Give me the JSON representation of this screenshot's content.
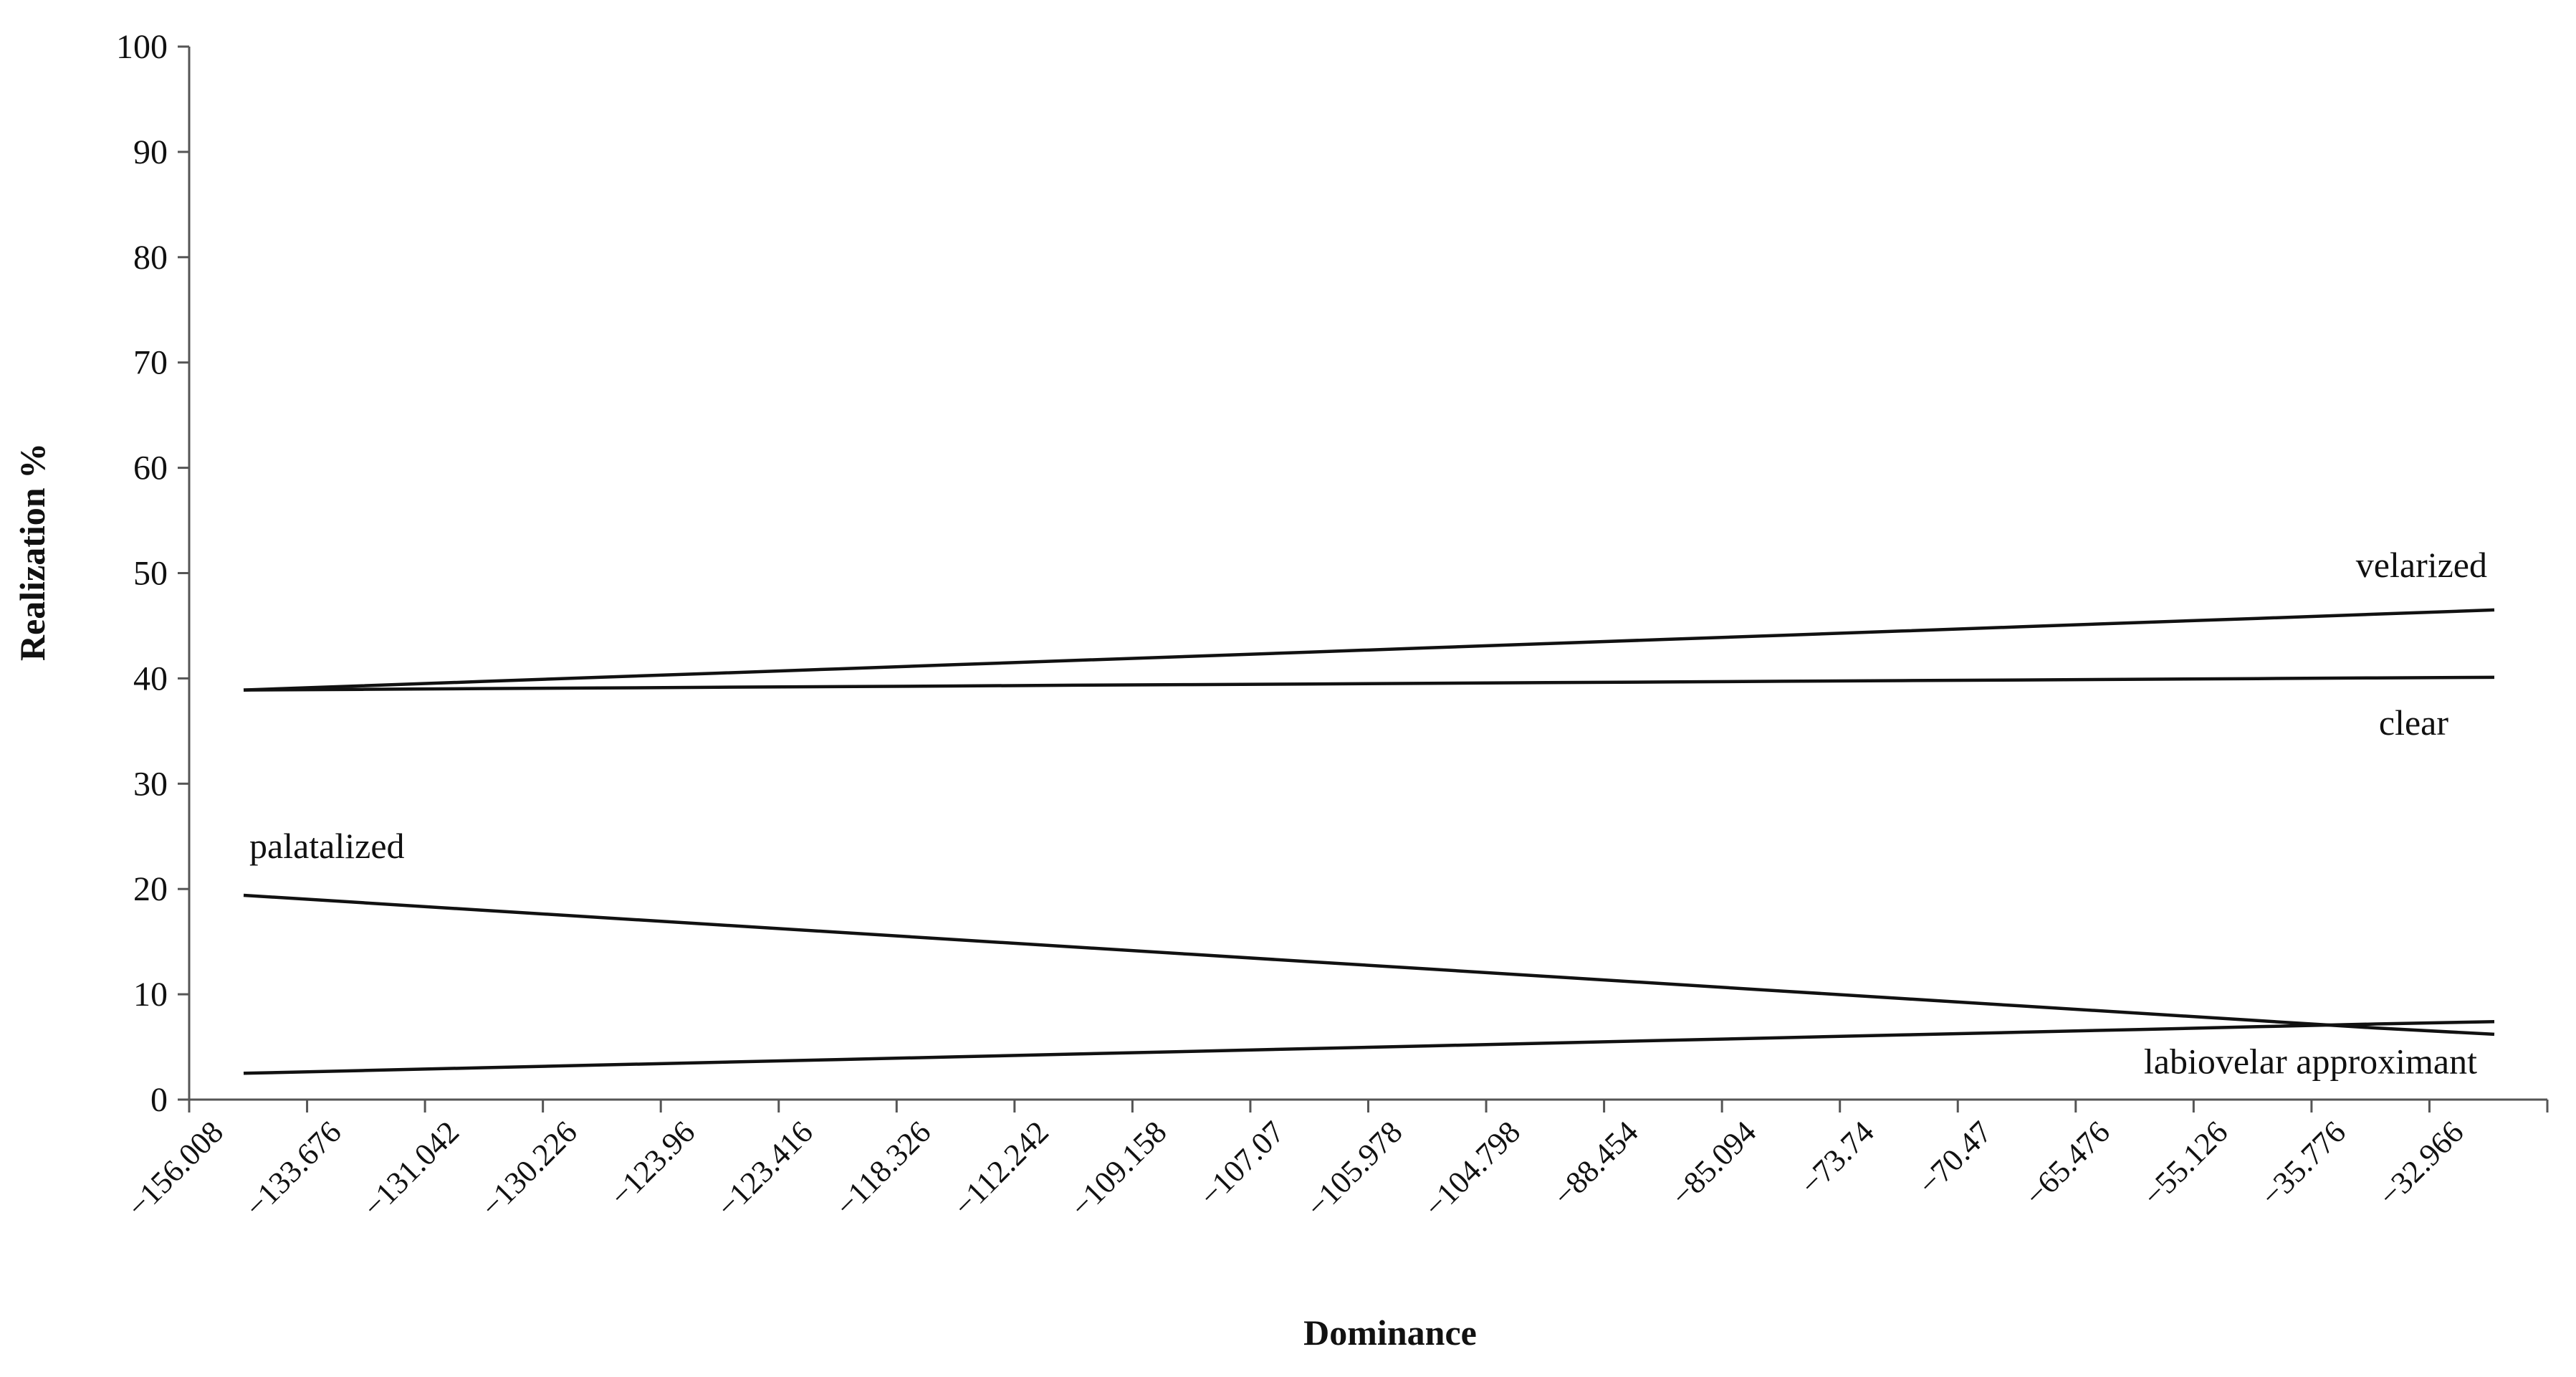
{
  "chart_data": {
    "type": "line",
    "title": "",
    "xlabel": "Dominance",
    "ylabel": "Realization %",
    "categories": [
      "−156.008",
      "−133.676",
      "−131.042",
      "−130.226",
      "−123.96",
      "−123.416",
      "−118.326",
      "−112.242",
      "−109.158",
      "−107.07",
      "−105.978",
      "−104.798",
      "−88.454",
      "−85.094",
      "−73.74",
      "−70.47",
      "−65.476",
      "−55.126",
      "−35.776",
      "−32.966"
    ],
    "ylim": [
      0,
      100
    ],
    "yticks": [
      0,
      10,
      20,
      30,
      40,
      50,
      60,
      70,
      80,
      90,
      100
    ],
    "grid": false,
    "legend": "none (series labelled inline)",
    "series": [
      {
        "name": "velarized",
        "values": [
          38.9,
          39.3,
          39.7,
          40.1,
          40.5,
          40.9,
          41.3,
          41.7,
          42.1,
          42.5,
          42.9,
          43.3,
          43.7,
          44.1,
          44.5,
          44.9,
          45.3,
          45.7,
          46.1,
          46.5
        ]
      },
      {
        "name": "clear",
        "values": [
          38.9,
          38.96,
          39.03,
          39.09,
          39.16,
          39.22,
          39.28,
          39.35,
          39.41,
          39.47,
          39.54,
          39.6,
          39.66,
          39.73,
          39.79,
          39.85,
          39.92,
          39.98,
          40.05,
          40.1
        ]
      },
      {
        "name": "palatalized",
        "values": [
          19.4,
          18.7,
          18.0,
          17.3,
          16.6,
          15.9,
          15.2,
          14.5,
          13.8,
          13.1,
          12.4,
          11.7,
          11.0,
          10.3,
          9.6,
          8.9,
          8.2,
          7.5,
          6.8,
          6.2
        ]
      },
      {
        "name": "labiovelar approximant",
        "values": [
          2.5,
          2.76,
          3.02,
          3.28,
          3.54,
          3.8,
          4.06,
          4.32,
          4.58,
          4.84,
          5.1,
          5.36,
          5.62,
          5.88,
          6.14,
          6.4,
          6.66,
          6.92,
          7.18,
          7.4
        ]
      }
    ]
  }
}
